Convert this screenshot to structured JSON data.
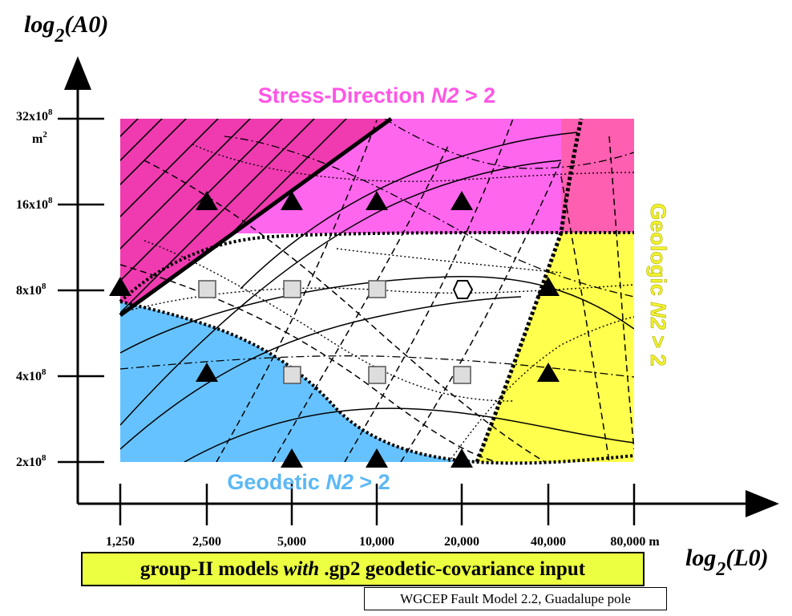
{
  "axes": {
    "y_label_main": "log",
    "y_label_sub": "2",
    "y_label_arg": "(A0)",
    "x_label_main": "log",
    "x_label_sub": "2",
    "x_label_arg": "(L0)",
    "y_ticks": [
      {
        "base": "32x10",
        "exp": "8",
        "unit": "m",
        "unit_exp": "2"
      },
      {
        "base": "16x10",
        "exp": "8"
      },
      {
        "base": "8x10",
        "exp": "8"
      },
      {
        "base": "4x10",
        "exp": "8"
      },
      {
        "base": "2x10",
        "exp": "8"
      }
    ],
    "x_ticks": [
      "1,250",
      "2,500",
      "5,000",
      "10,000",
      "20,000",
      "40,000",
      "80,000 m"
    ]
  },
  "regions": {
    "stress": {
      "prefix": "Stress-Direction ",
      "n": "N2",
      "suffix": " > 2",
      "color": "#ff66ee"
    },
    "geodetic": {
      "prefix": "Geodetic ",
      "n": "N2",
      "suffix": " > 2",
      "color": "#66c2ff"
    },
    "geologic": {
      "prefix": "Geologic ",
      "n": "N2",
      "suffix": " > 2",
      "color": "#ffff4d"
    },
    "overlap_color": "#ff5fb0"
  },
  "caption": {
    "part1": "group-II models ",
    "part2": "with",
    "part3": " .gp2 geodetic-covariance input"
  },
  "note": "WGCEP  Fault Model 2.2, Guadalupe pole"
}
